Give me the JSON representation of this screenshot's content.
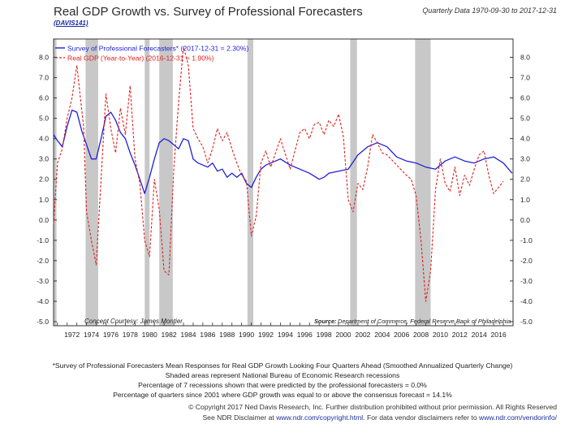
{
  "header": {
    "title": "Real GDP Growth vs. Survey of Professional Forecasters",
    "code": "(DAVIS141)",
    "date_range": "Quarterly Data 1970-09-30 to 2017-12-31"
  },
  "chart_data": {
    "type": "line",
    "title": "Real GDP Growth vs. Survey of Professional Forecasters",
    "xlim": [
      1970.6,
      2018.0
    ],
    "ylim": [
      -5.2,
      8.9
    ],
    "y_ticks": [
      -5.0,
      -4.0,
      -3.0,
      -2.0,
      -1.0,
      0.0,
      1.0,
      2.0,
      3.0,
      4.0,
      5.0,
      6.0,
      7.0,
      8.0
    ],
    "y_tick_labels": [
      "-5.0",
      "-4.0",
      "-3.0",
      "-2.0",
      "-1.0",
      "0.0",
      "1.0",
      "2.0",
      "3.0",
      "4.0",
      "5.0",
      "6.0",
      "7.0",
      "8.0"
    ],
    "x_ticks": [
      1972,
      1974,
      1976,
      1978,
      1980,
      1982,
      1984,
      1986,
      1988,
      1990,
      1992,
      1994,
      1996,
      1998,
      2000,
      2002,
      2004,
      2006,
      2008,
      2010,
      2012,
      2014,
      2016
    ],
    "x_tick_labels": [
      "1972",
      "1974",
      "1976",
      "1978",
      "1980",
      "1982",
      "1984",
      "1986",
      "1988",
      "1990",
      "1992",
      "1994",
      "1996",
      "1998",
      "2000",
      "2002",
      "2004",
      "2006",
      "2008",
      "2010",
      "2012",
      "2014",
      "2016"
    ],
    "recessions": [
      [
        1970.6,
        1970.9
      ],
      [
        1973.9,
        1975.2
      ],
      [
        1980.0,
        1980.5
      ],
      [
        1981.5,
        1982.9
      ],
      [
        1990.6,
        1991.2
      ],
      [
        2001.2,
        2001.9
      ],
      [
        2007.9,
        2009.5
      ]
    ],
    "series": [
      {
        "name": "Survey of Professional Forecasters",
        "legend": "Survey of Professional Forecasters* (2017-12-31 = 2.30%)",
        "color": "#1f1fd6",
        "style": "solid",
        "x": [
          1970.6,
          1971.0,
          1971.5,
          1972.0,
          1972.5,
          1973.0,
          1973.5,
          1974.0,
          1974.5,
          1975.0,
          1975.5,
          1976.0,
          1976.5,
          1977.0,
          1977.5,
          1978.0,
          1978.5,
          1979.0,
          1979.5,
          1980.0,
          1980.5,
          1981.0,
          1981.5,
          1982.0,
          1982.5,
          1983.0,
          1983.5,
          1984.0,
          1984.5,
          1985.0,
          1985.5,
          1986.0,
          1986.5,
          1987.0,
          1987.5,
          1988.0,
          1988.5,
          1989.0,
          1989.5,
          1990.0,
          1990.5,
          1991.0,
          1991.5,
          1992.0,
          1992.5,
          1993.0,
          1994.0,
          1995.0,
          1996.0,
          1997.0,
          1998.0,
          1998.5,
          1999.0,
          2000.0,
          2001.0,
          2002.0,
          2003.0,
          2004.0,
          2005.0,
          2006.0,
          2007.0,
          2008.0,
          2009.0,
          2010.0,
          2011.0,
          2012.0,
          2013.0,
          2014.0,
          2015.0,
          2016.0,
          2017.0,
          2017.9
        ],
        "values": [
          4.2,
          3.9,
          3.6,
          4.6,
          5.4,
          5.3,
          4.4,
          3.7,
          3.0,
          3.0,
          4.0,
          5.1,
          5.3,
          4.9,
          4.3,
          4.0,
          3.3,
          2.7,
          2.0,
          1.3,
          2.1,
          3.0,
          3.8,
          4.0,
          3.9,
          3.7,
          3.5,
          4.0,
          3.9,
          3.0,
          2.8,
          2.7,
          2.6,
          2.8,
          2.4,
          2.5,
          2.1,
          2.3,
          2.1,
          2.3,
          1.8,
          1.6,
          2.1,
          2.5,
          2.7,
          2.8,
          3.0,
          2.7,
          2.5,
          2.3,
          2.0,
          2.1,
          2.3,
          2.4,
          2.5,
          3.2,
          3.6,
          3.8,
          3.6,
          3.1,
          2.9,
          2.8,
          2.6,
          2.5,
          2.9,
          3.1,
          2.9,
          2.8,
          3.0,
          3.1,
          2.8,
          2.3
        ]
      },
      {
        "name": "Real GDP (Year-to-Year)",
        "legend": "Real GDP (Year-to-Year) (2016-12-31 = 1.90%)",
        "color": "#e02020",
        "style": "dashed",
        "x": [
          1970.6,
          1971.0,
          1971.5,
          1972.0,
          1972.5,
          1973.0,
          1973.3,
          1973.7,
          1974.0,
          1974.5,
          1975.0,
          1975.5,
          1976.0,
          1976.5,
          1977.0,
          1977.5,
          1978.0,
          1978.5,
          1979.0,
          1979.5,
          1980.0,
          1980.5,
          1981.0,
          1981.5,
          1982.0,
          1982.5,
          1983.0,
          1983.5,
          1984.0,
          1984.5,
          1985.0,
          1985.5,
          1986.0,
          1986.5,
          1987.0,
          1987.5,
          1988.0,
          1988.5,
          1989.0,
          1989.5,
          1990.0,
          1990.5,
          1991.0,
          1991.5,
          1992.0,
          1992.5,
          1993.0,
          1994.0,
          1995.0,
          1996.0,
          1996.5,
          1997.0,
          1997.5,
          1998.0,
          1998.5,
          1999.0,
          1999.5,
          2000.0,
          2000.5,
          2001.0,
          2001.5,
          2002.0,
          2002.5,
          2003.0,
          2003.5,
          2004.0,
          2004.5,
          2005.0,
          2006.0,
          2007.0,
          2007.5,
          2008.0,
          2008.5,
          2009.0,
          2009.5,
          2010.0,
          2010.5,
          2011.0,
          2011.5,
          2012.0,
          2012.5,
          2013.0,
          2013.5,
          2014.0,
          2014.5,
          2015.0,
          2015.5,
          2016.0,
          2016.5,
          2017.0
        ],
        "values": [
          -0.2,
          2.8,
          3.5,
          5.0,
          6.0,
          7.6,
          6.3,
          4.6,
          0.4,
          -1.0,
          -2.2,
          2.0,
          6.2,
          4.5,
          3.3,
          5.5,
          4.2,
          6.6,
          3.0,
          1.8,
          -1.0,
          -1.8,
          2.0,
          0.5,
          -2.5,
          -2.7,
          2.5,
          5.8,
          8.5,
          7.6,
          4.5,
          4.0,
          3.6,
          2.8,
          3.5,
          4.5,
          3.9,
          4.3,
          3.5,
          2.8,
          2.2,
          1.9,
          -0.8,
          0.2,
          2.8,
          3.4,
          2.6,
          4.0,
          2.5,
          4.3,
          4.5,
          4.0,
          4.7,
          4.8,
          4.2,
          4.9,
          4.6,
          5.2,
          4.1,
          1.0,
          0.4,
          1.8,
          1.5,
          2.6,
          4.2,
          3.8,
          3.3,
          3.2,
          2.7,
          2.2,
          2.0,
          1.2,
          -1.0,
          -4.0,
          -2.5,
          1.5,
          3.0,
          1.8,
          1.4,
          2.6,
          1.2,
          2.2,
          1.7,
          2.5,
          3.2,
          3.4,
          2.2,
          1.3,
          1.6,
          1.9
        ]
      }
    ],
    "annotations": {
      "credit": "Concept Courtesy: James Montier",
      "source_label": "Source:",
      "source_text": "Department of Commerce, Federal Reserve Bank of Philadelphia"
    }
  },
  "footnotes": {
    "line1": "*Survey of Professional Forecasters Mean Responses for Real GDP Growth Looking Four Quarters Ahead (Smoothed Annualized Quarterly Change)",
    "line2": "Shaded areas represent National Bureau of Economic Research recessions",
    "line3": "Percentage of 7 recessions shown that were predicted by the professional forecasters = 0.0%",
    "line4": "Percentage of quarters since 2001 where GDP growth was equal to or above the consensus forecast = 14.1%"
  },
  "footer": {
    "copyright": "© Copyright 2017 Ned Davis Research, Inc. Further distribution prohibited without prior permission. All Rights Reserved",
    "disclaimer_prefix": "See NDR Disclaimer at ",
    "disclaimer_link1": "www.ndr.com/copyright.html",
    "disclaimer_mid": ". For data vendor disclaimers refer to ",
    "disclaimer_link2": "www.ndr.com/vendorinfo/"
  }
}
